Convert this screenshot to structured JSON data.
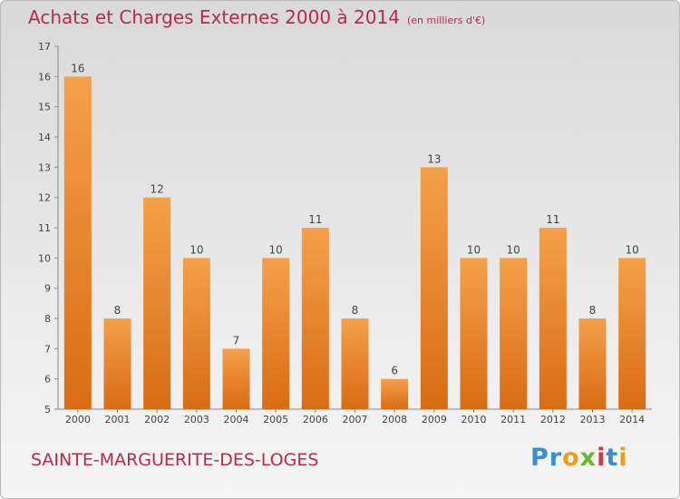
{
  "header": {
    "title": "Achats et Charges Externes 2000 à 2014",
    "subtitle": "(en milliers d'€)"
  },
  "footer": {
    "city": "SAINTE-MARGUERITE-DES-LOGES",
    "logo": {
      "p1": "Pr",
      "p2": "o",
      "p3": "x",
      "p4": "i",
      "p5": "t",
      "p6": "i"
    }
  },
  "colors": {
    "bar_top": "#f5a04a",
    "bar_bottom": "#d86c14",
    "title": "#b52b4e"
  },
  "chart_data": {
    "type": "bar",
    "title": "Achats et Charges Externes 2000 à 2014",
    "subtitle": "(en milliers d'€)",
    "categories": [
      "2000",
      "2001",
      "2002",
      "2003",
      "2004",
      "2005",
      "2006",
      "2007",
      "2008",
      "2009",
      "2010",
      "2011",
      "2012",
      "2013",
      "2014"
    ],
    "values": [
      16,
      8,
      12,
      10,
      7,
      10,
      11,
      8,
      6,
      13,
      10,
      10,
      11,
      8,
      10
    ],
    "data_labels": [
      "16",
      "8",
      "12",
      "10",
      "7",
      "10",
      "11",
      "8",
      "6",
      "13",
      "10",
      "10",
      "11",
      "8",
      "10"
    ],
    "ylim": [
      5,
      17
    ],
    "yticks": [
      5,
      6,
      7,
      8,
      9,
      10,
      11,
      12,
      13,
      14,
      15,
      16,
      17
    ],
    "xlabel": "",
    "ylabel": "",
    "grid": false,
    "legend": "none"
  }
}
